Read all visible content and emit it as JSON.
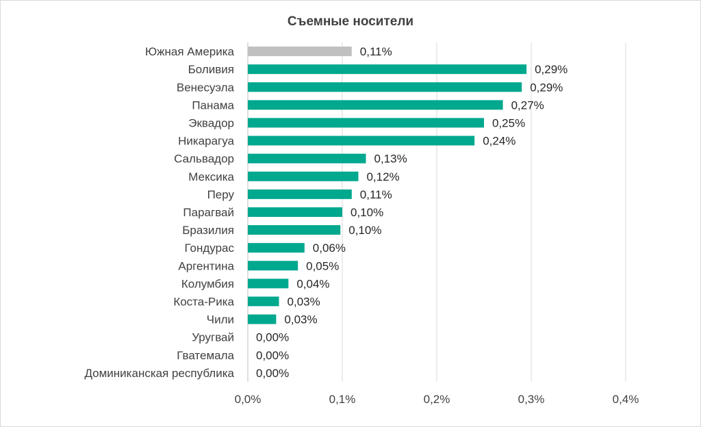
{
  "chart_data": {
    "type": "bar",
    "orientation": "horizontal",
    "title": "Съемные носители",
    "categories": [
      "Южная Америка",
      "Боливия",
      "Венесуэла",
      "Панама",
      "Эквадор",
      "Никарагуа",
      "Сальвадор",
      "Мексика",
      "Перу",
      "Парагвай",
      "Бразилия",
      "Гондурас",
      "Аргентина",
      "Колумбия",
      "Коста-Рика",
      "Чили",
      "Уругвай",
      "Гватемала",
      "Доминиканская республика"
    ],
    "values": [
      0.11,
      0.295,
      0.29,
      0.27,
      0.25,
      0.24,
      0.125,
      0.117,
      0.11,
      0.1,
      0.098,
      0.06,
      0.053,
      0.043,
      0.033,
      0.03,
      0.0,
      0.0,
      0.0
    ],
    "value_labels": [
      "0,11%",
      "0,29%",
      "0,29%",
      "0,27%",
      "0,25%",
      "0,24%",
      "0,13%",
      "0,12%",
      "0,11%",
      "0,10%",
      "0,10%",
      "0,06%",
      "0,05%",
      "0,04%",
      "0,03%",
      "0,03%",
      "0,00%",
      "0,00%",
      "0,00%"
    ],
    "bar_colors": [
      "#c0c0c0",
      "#00a88e",
      "#00a88e",
      "#00a88e",
      "#00a88e",
      "#00a88e",
      "#00a88e",
      "#00a88e",
      "#00a88e",
      "#00a88e",
      "#00a88e",
      "#00a88e",
      "#00a88e",
      "#00a88e",
      "#00a88e",
      "#00a88e",
      "#00a88e",
      "#00a88e",
      "#00a88e"
    ],
    "xlim": [
      0,
      0.4
    ],
    "xticks": [
      0,
      0.1,
      0.2,
      0.3,
      0.4
    ],
    "xtick_labels": [
      "0,0%",
      "0,1%",
      "0,2%",
      "0,3%",
      "0,4%"
    ],
    "xlabel": "",
    "ylabel": "",
    "grid": "vertical",
    "legend": "none"
  }
}
